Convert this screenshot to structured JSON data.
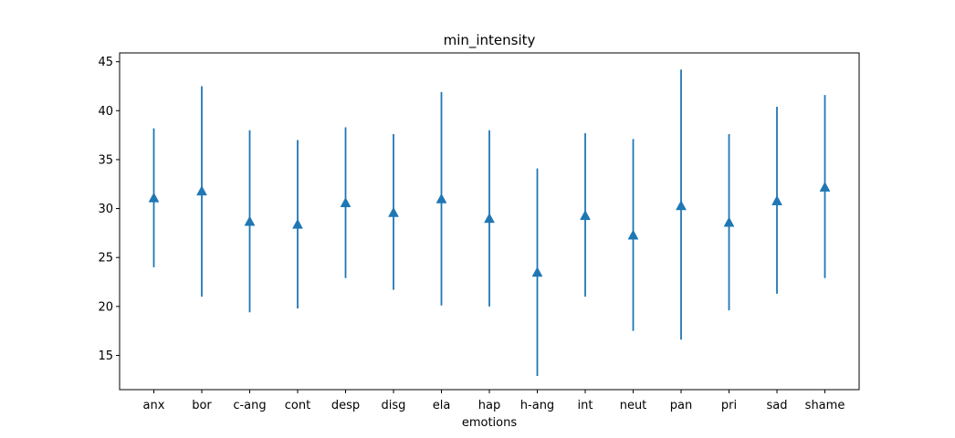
{
  "chart_data": {
    "type": "errorbar",
    "title": "min_intensity",
    "xlabel": "emotions",
    "ylabel": "",
    "ylim": [
      11.5,
      45.9
    ],
    "yticks": [
      15,
      20,
      25,
      30,
      35,
      40,
      45
    ],
    "grid": false,
    "color": "#1f77b4",
    "marker": "triangle-up",
    "categories": [
      "anx",
      "bor",
      "c-ang",
      "cont",
      "desp",
      "disg",
      "ela",
      "hap",
      "h-ang",
      "int",
      "neut",
      "pan",
      "pri",
      "sad",
      "shame"
    ],
    "series": [
      {
        "values": [
          31.1,
          31.8,
          28.7,
          28.4,
          30.6,
          29.6,
          31.0,
          29.0,
          23.5,
          29.3,
          27.3,
          30.3,
          28.6,
          30.8,
          32.2
        ],
        "lower": [
          24.0,
          21.0,
          19.4,
          19.8,
          22.9,
          21.7,
          20.1,
          20.0,
          12.9,
          21.0,
          17.5,
          16.6,
          19.6,
          21.3,
          22.9
        ],
        "upper": [
          38.2,
          42.5,
          38.0,
          37.0,
          38.3,
          37.6,
          41.9,
          38.0,
          34.1,
          37.7,
          37.1,
          44.2,
          37.6,
          40.4,
          41.6
        ]
      }
    ]
  }
}
